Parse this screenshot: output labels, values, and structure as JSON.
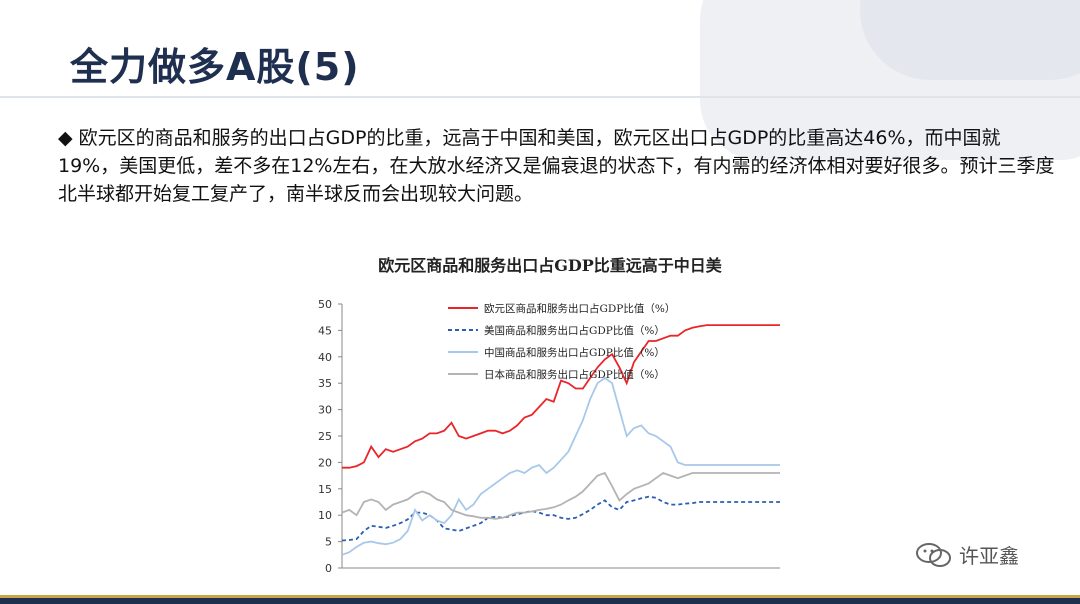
{
  "slide": {
    "title": "全力做多A股(5)",
    "paragraph": "◆ 欧元区的商品和服务的出口占GDP的比重，远高于中国和美国，欧元区出口占GDP的比重高达46%，而中国就19%，美国更低，差不多在12%左右，在大放水经济又是偏衰退的状态下，有内需的经济体相对要好很多。预计三季度北半球都开始复工复产了，南半球反而会出现较大问题。"
  },
  "watermark": {
    "text": "许亚鑫",
    "icon": "wechat-icon"
  },
  "chart_data": {
    "type": "line",
    "title": "欧元区商品和服务出口占GDP比重远高于中日美",
    "ylim": [
      0,
      50
    ],
    "yticks": [
      0,
      5,
      10,
      15,
      20,
      25,
      30,
      35,
      40,
      45,
      50
    ],
    "legend_position": "top",
    "grid": false,
    "x": [
      0,
      1,
      2,
      3,
      4,
      5,
      6,
      7,
      8,
      9,
      10,
      11,
      12,
      13,
      14,
      15,
      16,
      17,
      18,
      19,
      20,
      21,
      22,
      23,
      24,
      25,
      26,
      27,
      28,
      29,
      30,
      31,
      32,
      33,
      34,
      35,
      36,
      37,
      38,
      39,
      40,
      41,
      42,
      43,
      44,
      45,
      46,
      47,
      48,
      49,
      50,
      51,
      52,
      53,
      54,
      55,
      56,
      57,
      58,
      59,
      60
    ],
    "series": [
      {
        "name": "欧元区商品和服务出口占GDP比值（%）",
        "color": "#e8262a",
        "dash": false,
        "values": [
          19,
          19,
          19.3,
          20,
          23,
          21,
          22.5,
          22,
          22.5,
          23,
          24,
          24.5,
          25.5,
          25.5,
          26,
          27.5,
          25,
          24.5,
          25,
          25.5,
          26,
          26,
          25.5,
          26,
          27,
          28.5,
          29,
          30.5,
          32,
          31.5,
          35.5,
          35,
          34,
          34,
          36,
          38,
          39.5,
          40.5,
          38,
          35,
          39,
          41,
          43,
          43,
          43.5,
          44,
          44,
          45,
          45.5,
          45.8,
          46,
          46,
          46,
          46,
          46,
          46,
          46,
          46,
          46,
          46,
          46
        ]
      },
      {
        "name": "美国商品和服务出口占GDP比值（%）",
        "color": "#2a5fb4",
        "dash": true,
        "values": [
          5.2,
          5.3,
          5.5,
          7,
          8,
          7.8,
          7.6,
          8,
          8.5,
          9.2,
          10.5,
          10.5,
          10,
          9,
          7.5,
          7.3,
          7,
          7.5,
          8,
          8.5,
          9.5,
          9.7,
          9.5,
          9.8,
          10.2,
          10.5,
          10.8,
          10.5,
          10,
          10,
          9.5,
          9.3,
          9.5,
          10.2,
          11,
          12,
          12.8,
          11.5,
          11,
          12.5,
          12.8,
          13.2,
          13.5,
          13.3,
          12.5,
          12,
          12,
          12.2,
          12.3,
          12.5,
          12.5,
          12.5,
          12.5,
          12.5,
          12.5,
          12.5,
          12.5,
          12.5,
          12.5,
          12.5,
          12.5
        ]
      },
      {
        "name": "中国商品和服务出口占GDP比值（%）",
        "color": "#a8c8ea",
        "dash": false,
        "values": [
          2.5,
          3,
          4,
          4.8,
          5,
          4.7,
          4.5,
          4.8,
          5.5,
          7,
          11,
          9,
          10,
          9,
          8.5,
          10,
          13,
          11,
          12,
          14,
          15,
          16,
          17,
          18,
          18.5,
          18,
          19,
          19.5,
          18,
          19,
          20.5,
          22,
          25,
          28,
          32,
          35,
          36,
          35,
          30,
          25,
          26.5,
          27,
          25.5,
          25,
          24,
          23,
          20,
          19.5,
          19.5,
          19.5,
          19.5,
          19.5,
          19.5,
          19.5,
          19.5,
          19.5,
          19.5,
          19.5,
          19.5,
          19.5,
          19.5
        ]
      },
      {
        "name": "日本商品和服务出口占GDP比值（%）",
        "color": "#b3b3b3",
        "dash": false,
        "values": [
          10.5,
          11,
          10,
          12.5,
          13,
          12.5,
          11,
          12,
          12.5,
          13,
          14,
          14.5,
          14,
          13,
          12.5,
          11,
          10.5,
          10,
          9.8,
          9.5,
          9.5,
          9.3,
          9.5,
          10,
          10.5,
          10.5,
          10.7,
          11,
          11.2,
          11.5,
          12,
          12.8,
          13.5,
          14.5,
          16,
          17.5,
          18,
          15.5,
          12.8,
          14,
          15,
          15.5,
          16,
          17,
          18,
          17.5,
          17,
          17.5,
          18,
          18,
          18,
          18,
          18,
          18,
          18,
          18,
          18,
          18,
          18,
          18,
          18
        ]
      }
    ]
  }
}
